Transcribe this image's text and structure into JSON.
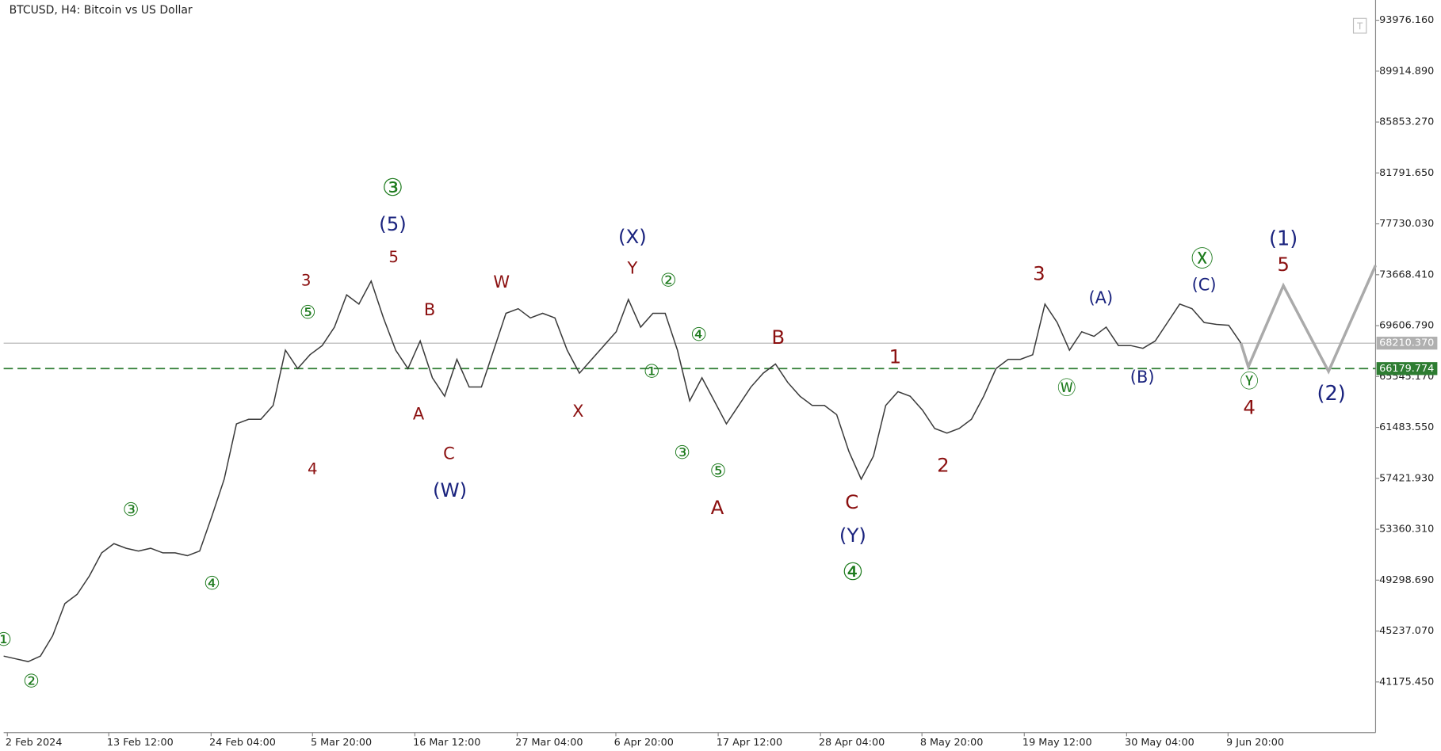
{
  "chart_data": {
    "type": "line",
    "title": "BTCUSD, H4:  Bitcoin vs US Dollar",
    "ylim": [
      37136,
      95592
    ],
    "yticks": [
      {
        "value": 93976.16,
        "label": "93976.160"
      },
      {
        "value": 89914.89,
        "label": "89914.890"
      },
      {
        "value": 85853.27,
        "label": "85853.270"
      },
      {
        "value": 81791.65,
        "label": "81791.650"
      },
      {
        "value": 77730.03,
        "label": "77730.030"
      },
      {
        "value": 73668.41,
        "label": "73668.410"
      },
      {
        "value": 69606.79,
        "label": "69606.790"
      },
      {
        "value": 65545.17,
        "label": "65545.170"
      },
      {
        "value": 61483.55,
        "label": "61483.550"
      },
      {
        "value": 57421.93,
        "label": "57421.930"
      },
      {
        "value": 53360.31,
        "label": "53360.310"
      },
      {
        "value": 49298.69,
        "label": "49298.690"
      },
      {
        "value": 45237.07,
        "label": "45237.070"
      },
      {
        "value": 41175.45,
        "label": "41175.450"
      }
    ],
    "xticks": [
      "2 Feb 2024",
      "13 Feb 12:00",
      "24 Feb 04:00",
      "5 Mar 20:00",
      "16 Mar 12:00",
      "27 Mar 04:00",
      "6 Apr 20:00",
      "17 Apr 12:00",
      "28 Apr 04:00",
      "8 May 20:00",
      "19 May 12:00",
      "30 May 04:00",
      "9 Jun 20:00"
    ],
    "series": [
      {
        "name": "BTCUSD",
        "color": "#3a3a3a",
        "values": [
          43239,
          43018,
          42798,
          43239,
          44856,
          47430,
          48165,
          49636,
          51474,
          52207,
          51842,
          51621,
          51842,
          51474,
          51474,
          51253,
          51621,
          54415,
          57356,
          61768,
          62136,
          62136,
          63239,
          67651,
          66180,
          67283,
          68017,
          69486,
          72062,
          71327,
          73165,
          70224,
          67651,
          66180,
          68386,
          65445,
          63974,
          66915,
          64709,
          64709,
          67651,
          70592,
          70960,
          70224,
          70592,
          70224,
          67651,
          65812,
          66915,
          68017,
          69121,
          71695,
          69486,
          70592,
          70592,
          67651,
          63606,
          65445,
          63606,
          61768,
          63239,
          64709,
          65812,
          66548,
          65077,
          63974,
          63239,
          63239,
          62503,
          59562,
          57356,
          59195,
          63239,
          64341,
          63974,
          62871,
          61401,
          61033,
          61401,
          62136,
          63974,
          66180,
          66915,
          66915,
          67283,
          71327,
          69857,
          67651,
          69121,
          68753,
          69486,
          68017,
          68017,
          67797,
          68386,
          69857,
          71327,
          70960,
          69857,
          69710,
          69637,
          68210
        ]
      },
      {
        "name": "projection",
        "color": "#aaaaaa",
        "values": [
          68210,
          66327,
          72798,
          65959,
          74415
        ]
      }
    ],
    "hlines": [
      {
        "value": 68210.37,
        "label": "68210.370",
        "color": "#b0b0b0"
      },
      {
        "value": 66179.774,
        "label": "66179.774",
        "color": "#2e7d32"
      }
    ],
    "annotations": [
      {
        "text": "②",
        "color": "#1e7b1e"
      },
      {
        "text": "①",
        "color": "#1e7b1e"
      },
      {
        "text": "③",
        "color": "#1e7b1e"
      },
      {
        "text": "④",
        "color": "#1e7b1e"
      },
      {
        "text": "3",
        "color": "#8b1010"
      },
      {
        "text": "⑤",
        "color": "#1e7b1e"
      },
      {
        "text": "4",
        "color": "#8b1010"
      },
      {
        "text": "③",
        "color": "#1e7b1e"
      },
      {
        "text": "(5)",
        "color": "#1a237e"
      },
      {
        "text": "5",
        "color": "#8b1010"
      },
      {
        "text": "B",
        "color": "#8b1010"
      },
      {
        "text": "A",
        "color": "#8b1010"
      },
      {
        "text": "C",
        "color": "#8b1010"
      },
      {
        "text": "(W)",
        "color": "#1a237e"
      },
      {
        "text": "W",
        "color": "#8b1010"
      },
      {
        "text": "X",
        "color": "#8b1010"
      },
      {
        "text": "(X)",
        "color": "#1a237e"
      },
      {
        "text": "Y",
        "color": "#8b1010"
      },
      {
        "text": "②",
        "color": "#1e7b1e"
      },
      {
        "text": "④",
        "color": "#1e7b1e"
      },
      {
        "text": "①",
        "color": "#1e7b1e"
      },
      {
        "text": "③",
        "color": "#1e7b1e"
      },
      {
        "text": "⑤",
        "color": "#1e7b1e"
      },
      {
        "text": "A",
        "color": "#8b1010"
      },
      {
        "text": "B",
        "color": "#8b1010"
      },
      {
        "text": "C",
        "color": "#8b1010"
      },
      {
        "text": "(Y)",
        "color": "#1a237e"
      },
      {
        "text": "④",
        "color": "#1e7b1e"
      },
      {
        "text": "1",
        "color": "#8b1010"
      },
      {
        "text": "2",
        "color": "#8b1010"
      },
      {
        "text": "3",
        "color": "#8b1010"
      },
      {
        "text": "Ⓦ",
        "color": "#1e7b1e"
      },
      {
        "text": "(A)",
        "color": "#1a237e"
      },
      {
        "text": "(B)",
        "color": "#1a237e"
      },
      {
        "text": "Ⓧ",
        "color": "#1e7b1e"
      },
      {
        "text": "(C)",
        "color": "#1a237e"
      },
      {
        "text": "Ⓨ",
        "color": "#1e7b1e"
      },
      {
        "text": "4",
        "color": "#8b1010"
      },
      {
        "text": "(1)",
        "color": "#1a237e"
      },
      {
        "text": "5",
        "color": "#8b1010"
      },
      {
        "text": "(2)",
        "color": "#1a237e"
      }
    ]
  }
}
